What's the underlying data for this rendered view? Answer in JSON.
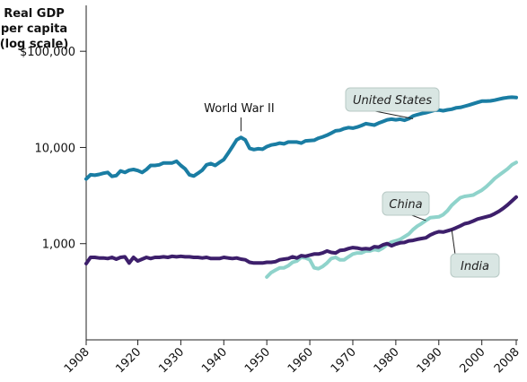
{
  "chart_data": {
    "type": "line",
    "ylabel_lines": [
      "Real GDP",
      "per capita",
      "(log scale)"
    ],
    "y_scale": "log",
    "ylim": [
      100,
      300000
    ],
    "y_ticks": [
      {
        "value": 100000,
        "label": "$100,000"
      },
      {
        "value": 10000,
        "label": "10,000"
      },
      {
        "value": 1000,
        "label": "1,000"
      }
    ],
    "xlim": [
      1908,
      2008
    ],
    "x_ticks": [
      {
        "value": 1908,
        "label": "1908"
      },
      {
        "value": 1920,
        "label": "1920"
      },
      {
        "value": 1930,
        "label": "1930"
      },
      {
        "value": 1940,
        "label": "1940"
      },
      {
        "value": 1950,
        "label": "1950"
      },
      {
        "value": 1960,
        "label": "1960"
      },
      {
        "value": 1970,
        "label": "1970"
      },
      {
        "value": 1980,
        "label": "1980"
      },
      {
        "value": 1990,
        "label": "1990"
      },
      {
        "value": 2000,
        "label": "2000"
      },
      {
        "value": 2008,
        "label": "2008"
      }
    ],
    "grid": false,
    "series": [
      {
        "name": "United States",
        "color": "#1a7da3",
        "points": [
          [
            1908,
            4700
          ],
          [
            1909,
            5200
          ],
          [
            1910,
            5150
          ],
          [
            1911,
            5250
          ],
          [
            1912,
            5400
          ],
          [
            1913,
            5500
          ],
          [
            1914,
            5000
          ],
          [
            1915,
            5100
          ],
          [
            1916,
            5700
          ],
          [
            1917,
            5500
          ],
          [
            1918,
            5800
          ],
          [
            1919,
            5900
          ],
          [
            1920,
            5750
          ],
          [
            1921,
            5500
          ],
          [
            1922,
            5900
          ],
          [
            1923,
            6500
          ],
          [
            1924,
            6500
          ],
          [
            1925,
            6600
          ],
          [
            1926,
            6900
          ],
          [
            1927,
            6900
          ],
          [
            1928,
            6900
          ],
          [
            1929,
            7200
          ],
          [
            1930,
            6500
          ],
          [
            1931,
            6000
          ],
          [
            1932,
            5200
          ],
          [
            1933,
            5050
          ],
          [
            1934,
            5400
          ],
          [
            1935,
            5800
          ],
          [
            1936,
            6600
          ],
          [
            1937,
            6800
          ],
          [
            1938,
            6500
          ],
          [
            1939,
            7000
          ],
          [
            1940,
            7500
          ],
          [
            1941,
            8700
          ],
          [
            1942,
            10200
          ],
          [
            1943,
            12000
          ],
          [
            1944,
            12700
          ],
          [
            1945,
            12000
          ],
          [
            1946,
            9800
          ],
          [
            1947,
            9500
          ],
          [
            1948,
            9700
          ],
          [
            1949,
            9600
          ],
          [
            1950,
            10200
          ],
          [
            1951,
            10600
          ],
          [
            1952,
            10800
          ],
          [
            1953,
            11100
          ],
          [
            1954,
            10900
          ],
          [
            1955,
            11400
          ],
          [
            1956,
            11400
          ],
          [
            1957,
            11400
          ],
          [
            1958,
            11100
          ],
          [
            1959,
            11700
          ],
          [
            1960,
            11800
          ],
          [
            1961,
            11900
          ],
          [
            1962,
            12500
          ],
          [
            1963,
            12900
          ],
          [
            1964,
            13400
          ],
          [
            1965,
            14100
          ],
          [
            1966,
            14900
          ],
          [
            1967,
            15100
          ],
          [
            1968,
            15700
          ],
          [
            1969,
            16100
          ],
          [
            1970,
            15900
          ],
          [
            1971,
            16300
          ],
          [
            1972,
            16900
          ],
          [
            1973,
            17700
          ],
          [
            1974,
            17400
          ],
          [
            1975,
            17100
          ],
          [
            1976,
            17900
          ],
          [
            1977,
            18600
          ],
          [
            1978,
            19400
          ],
          [
            1979,
            19700
          ],
          [
            1980,
            19400
          ],
          [
            1981,
            19700
          ],
          [
            1982,
            19200
          ],
          [
            1983,
            19900
          ],
          [
            1984,
            21200
          ],
          [
            1985,
            21900
          ],
          [
            1986,
            22500
          ],
          [
            1987,
            23000
          ],
          [
            1988,
            23700
          ],
          [
            1989,
            24400
          ],
          [
            1990,
            24500
          ],
          [
            1991,
            24100
          ],
          [
            1992,
            24600
          ],
          [
            1993,
            25000
          ],
          [
            1994,
            25800
          ],
          [
            1995,
            26100
          ],
          [
            1996,
            26800
          ],
          [
            1997,
            27600
          ],
          [
            1998,
            28500
          ],
          [
            1999,
            29400
          ],
          [
            2000,
            30300
          ],
          [
            2001,
            30300
          ],
          [
            2002,
            30500
          ],
          [
            2003,
            31000
          ],
          [
            2004,
            31800
          ],
          [
            2005,
            32500
          ],
          [
            2006,
            33000
          ],
          [
            2007,
            33300
          ],
          [
            2008,
            33000
          ]
        ]
      },
      {
        "name": "China",
        "color": "#8fd3cb",
        "points": [
          [
            1950,
            450
          ],
          [
            1951,
            500
          ],
          [
            1952,
            530
          ],
          [
            1953,
            560
          ],
          [
            1954,
            560
          ],
          [
            1955,
            590
          ],
          [
            1956,
            640
          ],
          [
            1957,
            660
          ],
          [
            1958,
            720
          ],
          [
            1959,
            710
          ],
          [
            1960,
            680
          ],
          [
            1961,
            560
          ],
          [
            1962,
            550
          ],
          [
            1963,
            580
          ],
          [
            1964,
            630
          ],
          [
            1965,
            700
          ],
          [
            1966,
            720
          ],
          [
            1967,
            680
          ],
          [
            1968,
            680
          ],
          [
            1969,
            730
          ],
          [
            1970,
            780
          ],
          [
            1971,
            800
          ],
          [
            1972,
            800
          ],
          [
            1973,
            840
          ],
          [
            1974,
            840
          ],
          [
            1975,
            870
          ],
          [
            1976,
            850
          ],
          [
            1977,
            900
          ],
          [
            1978,
            980
          ],
          [
            1979,
            1040
          ],
          [
            1980,
            1070
          ],
          [
            1981,
            1110
          ],
          [
            1982,
            1180
          ],
          [
            1983,
            1260
          ],
          [
            1984,
            1400
          ],
          [
            1985,
            1520
          ],
          [
            1986,
            1620
          ],
          [
            1987,
            1740
          ],
          [
            1988,
            1860
          ],
          [
            1989,
            1880
          ],
          [
            1990,
            1900
          ],
          [
            1991,
            2000
          ],
          [
            1992,
            2200
          ],
          [
            1993,
            2500
          ],
          [
            1994,
            2750
          ],
          [
            1995,
            3000
          ],
          [
            1996,
            3100
          ],
          [
            1997,
            3150
          ],
          [
            1998,
            3200
          ],
          [
            1999,
            3400
          ],
          [
            2000,
            3600
          ],
          [
            2001,
            3900
          ],
          [
            2002,
            4300
          ],
          [
            2003,
            4750
          ],
          [
            2004,
            5150
          ],
          [
            2005,
            5550
          ],
          [
            2006,
            6000
          ],
          [
            2007,
            6600
          ],
          [
            2008,
            7000
          ]
        ]
      },
      {
        "name": "India",
        "color": "#3d1f6b",
        "points": [
          [
            1908,
            620
          ],
          [
            1909,
            720
          ],
          [
            1910,
            720
          ],
          [
            1911,
            710
          ],
          [
            1912,
            710
          ],
          [
            1913,
            700
          ],
          [
            1914,
            720
          ],
          [
            1915,
            690
          ],
          [
            1916,
            720
          ],
          [
            1917,
            730
          ],
          [
            1918,
            630
          ],
          [
            1919,
            720
          ],
          [
            1920,
            660
          ],
          [
            1921,
            690
          ],
          [
            1922,
            720
          ],
          [
            1923,
            700
          ],
          [
            1924,
            720
          ],
          [
            1925,
            720
          ],
          [
            1926,
            730
          ],
          [
            1927,
            720
          ],
          [
            1928,
            740
          ],
          [
            1929,
            730
          ],
          [
            1930,
            740
          ],
          [
            1931,
            730
          ],
          [
            1932,
            730
          ],
          [
            1933,
            720
          ],
          [
            1934,
            720
          ],
          [
            1935,
            710
          ],
          [
            1936,
            720
          ],
          [
            1937,
            700
          ],
          [
            1938,
            700
          ],
          [
            1939,
            700
          ],
          [
            1940,
            720
          ],
          [
            1941,
            710
          ],
          [
            1942,
            700
          ],
          [
            1943,
            710
          ],
          [
            1944,
            690
          ],
          [
            1945,
            680
          ],
          [
            1946,
            640
          ],
          [
            1947,
            630
          ],
          [
            1948,
            630
          ],
          [
            1949,
            630
          ],
          [
            1950,
            640
          ],
          [
            1951,
            640
          ],
          [
            1952,
            650
          ],
          [
            1953,
            680
          ],
          [
            1954,
            690
          ],
          [
            1955,
            700
          ],
          [
            1956,
            730
          ],
          [
            1957,
            710
          ],
          [
            1958,
            750
          ],
          [
            1959,
            740
          ],
          [
            1960,
            760
          ],
          [
            1961,
            780
          ],
          [
            1962,
            780
          ],
          [
            1963,
            800
          ],
          [
            1964,
            840
          ],
          [
            1965,
            810
          ],
          [
            1966,
            800
          ],
          [
            1967,
            850
          ],
          [
            1968,
            860
          ],
          [
            1969,
            890
          ],
          [
            1970,
            910
          ],
          [
            1971,
            900
          ],
          [
            1972,
            880
          ],
          [
            1973,
            890
          ],
          [
            1974,
            880
          ],
          [
            1975,
            930
          ],
          [
            1976,
            920
          ],
          [
            1977,
            970
          ],
          [
            1978,
            1000
          ],
          [
            1979,
            950
          ],
          [
            1980,
            990
          ],
          [
            1981,
            1020
          ],
          [
            1982,
            1030
          ],
          [
            1983,
            1070
          ],
          [
            1984,
            1080
          ],
          [
            1985,
            1110
          ],
          [
            1986,
            1130
          ],
          [
            1987,
            1150
          ],
          [
            1988,
            1230
          ],
          [
            1989,
            1290
          ],
          [
            1990,
            1330
          ],
          [
            1991,
            1320
          ],
          [
            1992,
            1360
          ],
          [
            1993,
            1400
          ],
          [
            1994,
            1460
          ],
          [
            1995,
            1530
          ],
          [
            1996,
            1610
          ],
          [
            1997,
            1650
          ],
          [
            1998,
            1720
          ],
          [
            1999,
            1800
          ],
          [
            2000,
            1850
          ],
          [
            2001,
            1900
          ],
          [
            2002,
            1950
          ],
          [
            2003,
            2050
          ],
          [
            2004,
            2170
          ],
          [
            2005,
            2330
          ],
          [
            2006,
            2530
          ],
          [
            2007,
            2780
          ],
          [
            2008,
            3050
          ]
        ]
      }
    ],
    "annotations": {
      "world_war": {
        "text": "World War II",
        "x": 1944,
        "y": 12700
      },
      "callouts": [
        {
          "text": "United States",
          "x": 1984,
          "y": 19900,
          "color": "#d9e6e3"
        },
        {
          "text": "China",
          "x": 1987,
          "y": 1740,
          "color": "#d9e6e3"
        },
        {
          "text": "India",
          "x": 1993,
          "y": 1400,
          "color": "#d9e6e3"
        }
      ]
    }
  }
}
